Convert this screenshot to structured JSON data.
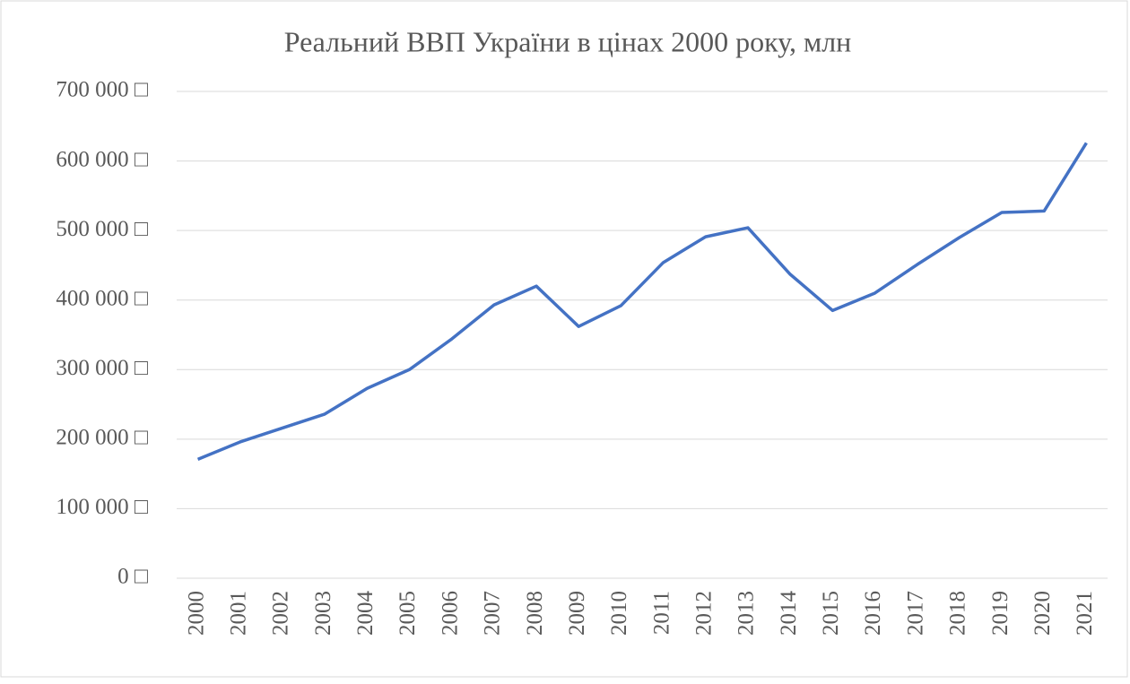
{
  "chart_data": {
    "type": "line",
    "title": "Реальний ВВП України в цінах 2000 року, млн",
    "categories": [
      "2000",
      "2001",
      "2002",
      "2003",
      "2004",
      "2005",
      "2006",
      "2007",
      "2008",
      "2009",
      "2010",
      "2011",
      "2012",
      "2013",
      "2014",
      "2015",
      "2016",
      "2017",
      "2018",
      "2019",
      "2020",
      "2021"
    ],
    "series": [
      {
        "name": "Реальний ВВП",
        "color": "#4472c4",
        "values": [
          171000,
          196000,
          216000,
          236000,
          273000,
          300000,
          344000,
          393000,
          420000,
          362000,
          392000,
          454000,
          491000,
          504000,
          437000,
          385000,
          410000,
          451000,
          490000,
          526000,
          528000,
          626000
        ]
      }
    ],
    "ylim": [
      0,
      700000
    ],
    "yticks": [
      {
        "value": 0,
        "label": "0 □"
      },
      {
        "value": 100000,
        "label": "100 000 □"
      },
      {
        "value": 200000,
        "label": "200 000 □"
      },
      {
        "value": 300000,
        "label": "300 000 □"
      },
      {
        "value": 400000,
        "label": "400 000 □"
      },
      {
        "value": 500000,
        "label": "500 000 □"
      },
      {
        "value": 600000,
        "label": "600 000 □"
      },
      {
        "value": 700000,
        "label": "700 000 □"
      }
    ],
    "grid": true
  }
}
